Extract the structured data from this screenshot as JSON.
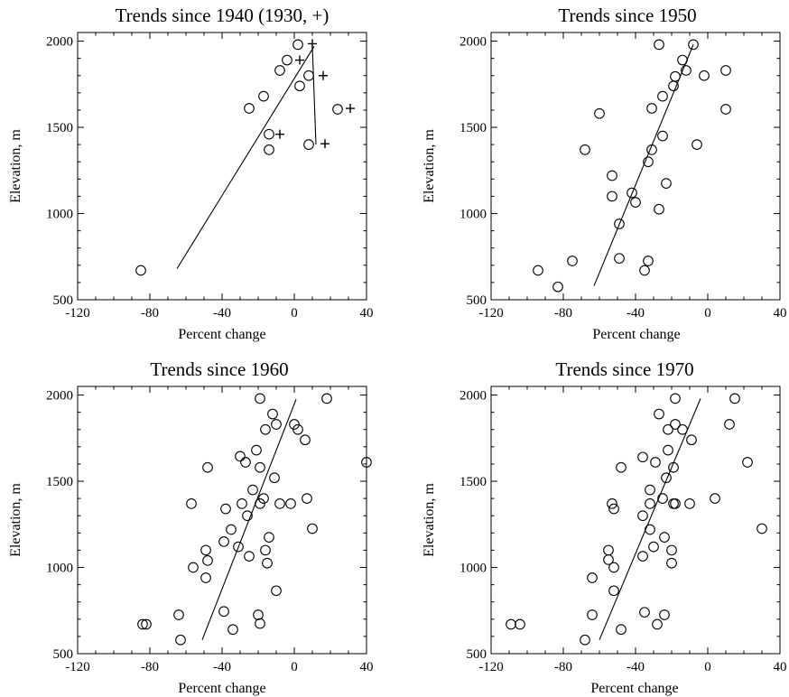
{
  "chart_data": [
    {
      "type": "scatter",
      "title": "Trends since 1940 (1930, +)",
      "xlabel": "Percent change",
      "ylabel": "Elevation, m",
      "xlim": [
        -120,
        40
      ],
      "ylim": [
        500,
        2050
      ],
      "xticks": [
        "-120",
        "-80",
        "-40",
        "0",
        "40"
      ],
      "yticks": [
        "500",
        "1000",
        "1500",
        "2000"
      ],
      "series": [
        {
          "marker": "circle",
          "points": [
            [
              -85,
              670
            ],
            [
              -25,
              1610
            ],
            [
              -17,
              1680
            ],
            [
              -14,
              1460
            ],
            [
              -14,
              1370
            ],
            [
              -8,
              1830
            ],
            [
              -4,
              1890
            ],
            [
              2,
              1980
            ],
            [
              3,
              1740
            ],
            [
              8,
              1800
            ],
            [
              8,
              1400
            ],
            [
              24,
              1605
            ]
          ]
        },
        {
          "marker": "plus",
          "points": [
            [
              -8,
              1460
            ],
            [
              10,
              1985
            ],
            [
              3,
              1890
            ],
            [
              16,
              1800
            ],
            [
              17,
              1405
            ],
            [
              31,
              1610
            ]
          ]
        }
      ],
      "fit_lines": [
        [
          [
            -65,
            680
          ],
          [
            11,
            1970
          ]
        ],
        [
          [
            10,
            1970
          ],
          [
            12,
            1400
          ]
        ]
      ]
    },
    {
      "type": "scatter",
      "title": "Trends since 1950",
      "xlabel": "Percent change",
      "ylabel": "Elevation, m",
      "xlim": [
        -120,
        40
      ],
      "ylim": [
        500,
        2050
      ],
      "xticks": [
        "-120",
        "-80",
        "-40",
        "0",
        "40"
      ],
      "yticks": [
        "500",
        "1000",
        "1500",
        "2000"
      ],
      "series": [
        {
          "marker": "circle",
          "points": [
            [
              -94,
              670
            ],
            [
              -83,
              575
            ],
            [
              -75,
              725
            ],
            [
              -68,
              1370
            ],
            [
              -60,
              1580
            ],
            [
              -53,
              1220
            ],
            [
              -53,
              1100
            ],
            [
              -49,
              940
            ],
            [
              -49,
              740
            ],
            [
              -42,
              1120
            ],
            [
              -40,
              1065
            ],
            [
              -35,
              670
            ],
            [
              -33,
              725
            ],
            [
              -33,
              1300
            ],
            [
              -31,
              1370
            ],
            [
              -31,
              1610
            ],
            [
              -27,
              1025
            ],
            [
              -27,
              1980
            ],
            [
              -25,
              1680
            ],
            [
              -25,
              1450
            ],
            [
              -23,
              1175
            ],
            [
              -19,
              1740
            ],
            [
              -18,
              1795
            ],
            [
              -14,
              1890
            ],
            [
              -12,
              1830
            ],
            [
              -8,
              1980
            ],
            [
              -6,
              1400
            ],
            [
              -2,
              1800
            ],
            [
              10,
              1830
            ],
            [
              10,
              1605
            ]
          ]
        }
      ],
      "fit_lines": [
        [
          [
            -63,
            580
          ],
          [
            -8,
            1980
          ]
        ]
      ]
    },
    {
      "type": "scatter",
      "title": "Trends since 1960",
      "xlabel": "Percent change",
      "ylabel": "Elevation, m",
      "xlim": [
        -120,
        40
      ],
      "ylim": [
        500,
        2050
      ],
      "xticks": [
        "-120",
        "-80",
        "-40",
        "0",
        "40"
      ],
      "yticks": [
        "500",
        "1000",
        "1500",
        "2000"
      ],
      "series": [
        {
          "marker": "circle",
          "points": [
            [
              -84,
              670
            ],
            [
              -82,
              670
            ],
            [
              -64,
              725
            ],
            [
              -63,
              580
            ],
            [
              -57,
              1370
            ],
            [
              -56,
              1000
            ],
            [
              -49,
              940
            ],
            [
              -49,
              1100
            ],
            [
              -48,
              1040
            ],
            [
              -48,
              1580
            ],
            [
              -39,
              745
            ],
            [
              -39,
              1150
            ],
            [
              -38,
              1340
            ],
            [
              -35,
              1220
            ],
            [
              -34,
              640
            ],
            [
              -31,
              1120
            ],
            [
              -30,
              1645
            ],
            [
              -29,
              1370
            ],
            [
              -27,
              1610
            ],
            [
              -26,
              1300
            ],
            [
              -25,
              1065
            ],
            [
              -23,
              1450
            ],
            [
              -21,
              1680
            ],
            [
              -20,
              725
            ],
            [
              -19,
              1980
            ],
            [
              -19,
              675
            ],
            [
              -19,
              1580
            ],
            [
              -19,
              1370
            ],
            [
              -17,
              1400
            ],
            [
              -16,
              1800
            ],
            [
              -16,
              1100
            ],
            [
              -15,
              1025
            ],
            [
              -14,
              1175
            ],
            [
              -12,
              1890
            ],
            [
              -11,
              1520
            ],
            [
              -10,
              1830
            ],
            [
              -10,
              865
            ],
            [
              -8,
              1370
            ],
            [
              -2,
              1370
            ],
            [
              0,
              1830
            ],
            [
              2,
              1800
            ],
            [
              6,
              1740
            ],
            [
              7,
              1400
            ],
            [
              10,
              1225
            ],
            [
              18,
              1980
            ],
            [
              40,
              1610
            ]
          ]
        }
      ],
      "fit_lines": [
        [
          [
            -51,
            580
          ],
          [
            1,
            1975
          ]
        ]
      ]
    },
    {
      "type": "scatter",
      "title": "Trends since 1970",
      "xlabel": "Percent change",
      "ylabel": "Elevation, m",
      "xlim": [
        -120,
        40
      ],
      "ylim": [
        500,
        2050
      ],
      "xticks": [
        "-120",
        "-80",
        "-40",
        "0",
        "40"
      ],
      "yticks": [
        "500",
        "1000",
        "1500",
        "2000"
      ],
      "series": [
        {
          "marker": "circle",
          "points": [
            [
              -109,
              670
            ],
            [
              -104,
              670
            ],
            [
              -68,
              580
            ],
            [
              -64,
              725
            ],
            [
              -64,
              940
            ],
            [
              -55,
              1045
            ],
            [
              -55,
              1100
            ],
            [
              -53,
              1370
            ],
            [
              -52,
              1000
            ],
            [
              -52,
              865
            ],
            [
              -52,
              1340
            ],
            [
              -48,
              1580
            ],
            [
              -48,
              640
            ],
            [
              -36,
              1300
            ],
            [
              -36,
              1065
            ],
            [
              -36,
              1640
            ],
            [
              -35,
              740
            ],
            [
              -32,
              1220
            ],
            [
              -32,
              1370
            ],
            [
              -32,
              1450
            ],
            [
              -30,
              1120
            ],
            [
              -29,
              1610
            ],
            [
              -28,
              670
            ],
            [
              -27,
              1890
            ],
            [
              -25,
              1400
            ],
            [
              -24,
              725
            ],
            [
              -24,
              1175
            ],
            [
              -23,
              1520
            ],
            [
              -22,
              1800
            ],
            [
              -22,
              1680
            ],
            [
              -20,
              1100
            ],
            [
              -20,
              1025
            ],
            [
              -19,
              1580
            ],
            [
              -19,
              1370
            ],
            [
              -18,
              1830
            ],
            [
              -18,
              1980
            ],
            [
              -18,
              1370
            ],
            [
              -14,
              1800
            ],
            [
              -10,
              1370
            ],
            [
              -9,
              1740
            ],
            [
              4,
              1400
            ],
            [
              12,
              1830
            ],
            [
              15,
              1980
            ],
            [
              22,
              1610
            ],
            [
              30,
              1225
            ]
          ]
        }
      ],
      "fit_lines": [
        [
          [
            -60,
            580
          ],
          [
            -4,
            1980
          ]
        ]
      ]
    }
  ]
}
